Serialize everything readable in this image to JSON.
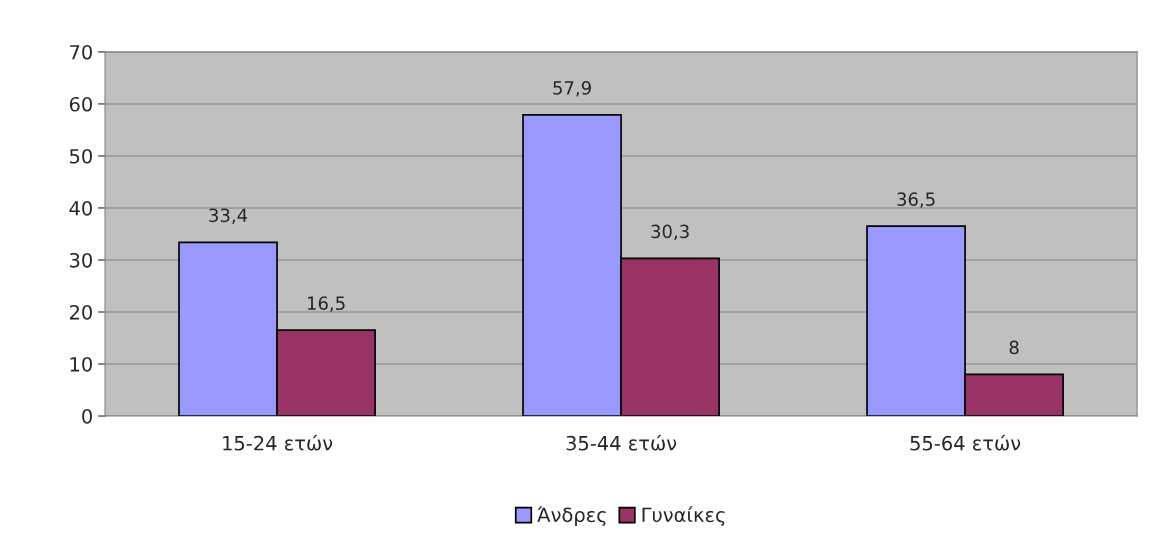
{
  "chart_data": {
    "type": "bar",
    "categories": [
      "15-24 ετών",
      "35-44 ετών",
      "55-64 ετών"
    ],
    "series": [
      {
        "name": "Άνδρες",
        "color": "#9999ff",
        "values": [
          33.4,
          57.9,
          36.5
        ],
        "value_labels": [
          "33,4",
          "57,9",
          "36,5"
        ]
      },
      {
        "name": "Γυναίκες",
        "color": "#993366",
        "values": [
          16.5,
          30.3,
          8
        ],
        "value_labels": [
          "16,5",
          "30,3",
          "8"
        ]
      }
    ],
    "ylim": [
      0,
      70
    ],
    "yticks": [
      0,
      10,
      20,
      30,
      40,
      50,
      60,
      70
    ],
    "grid": "y",
    "legend": "bottom"
  }
}
